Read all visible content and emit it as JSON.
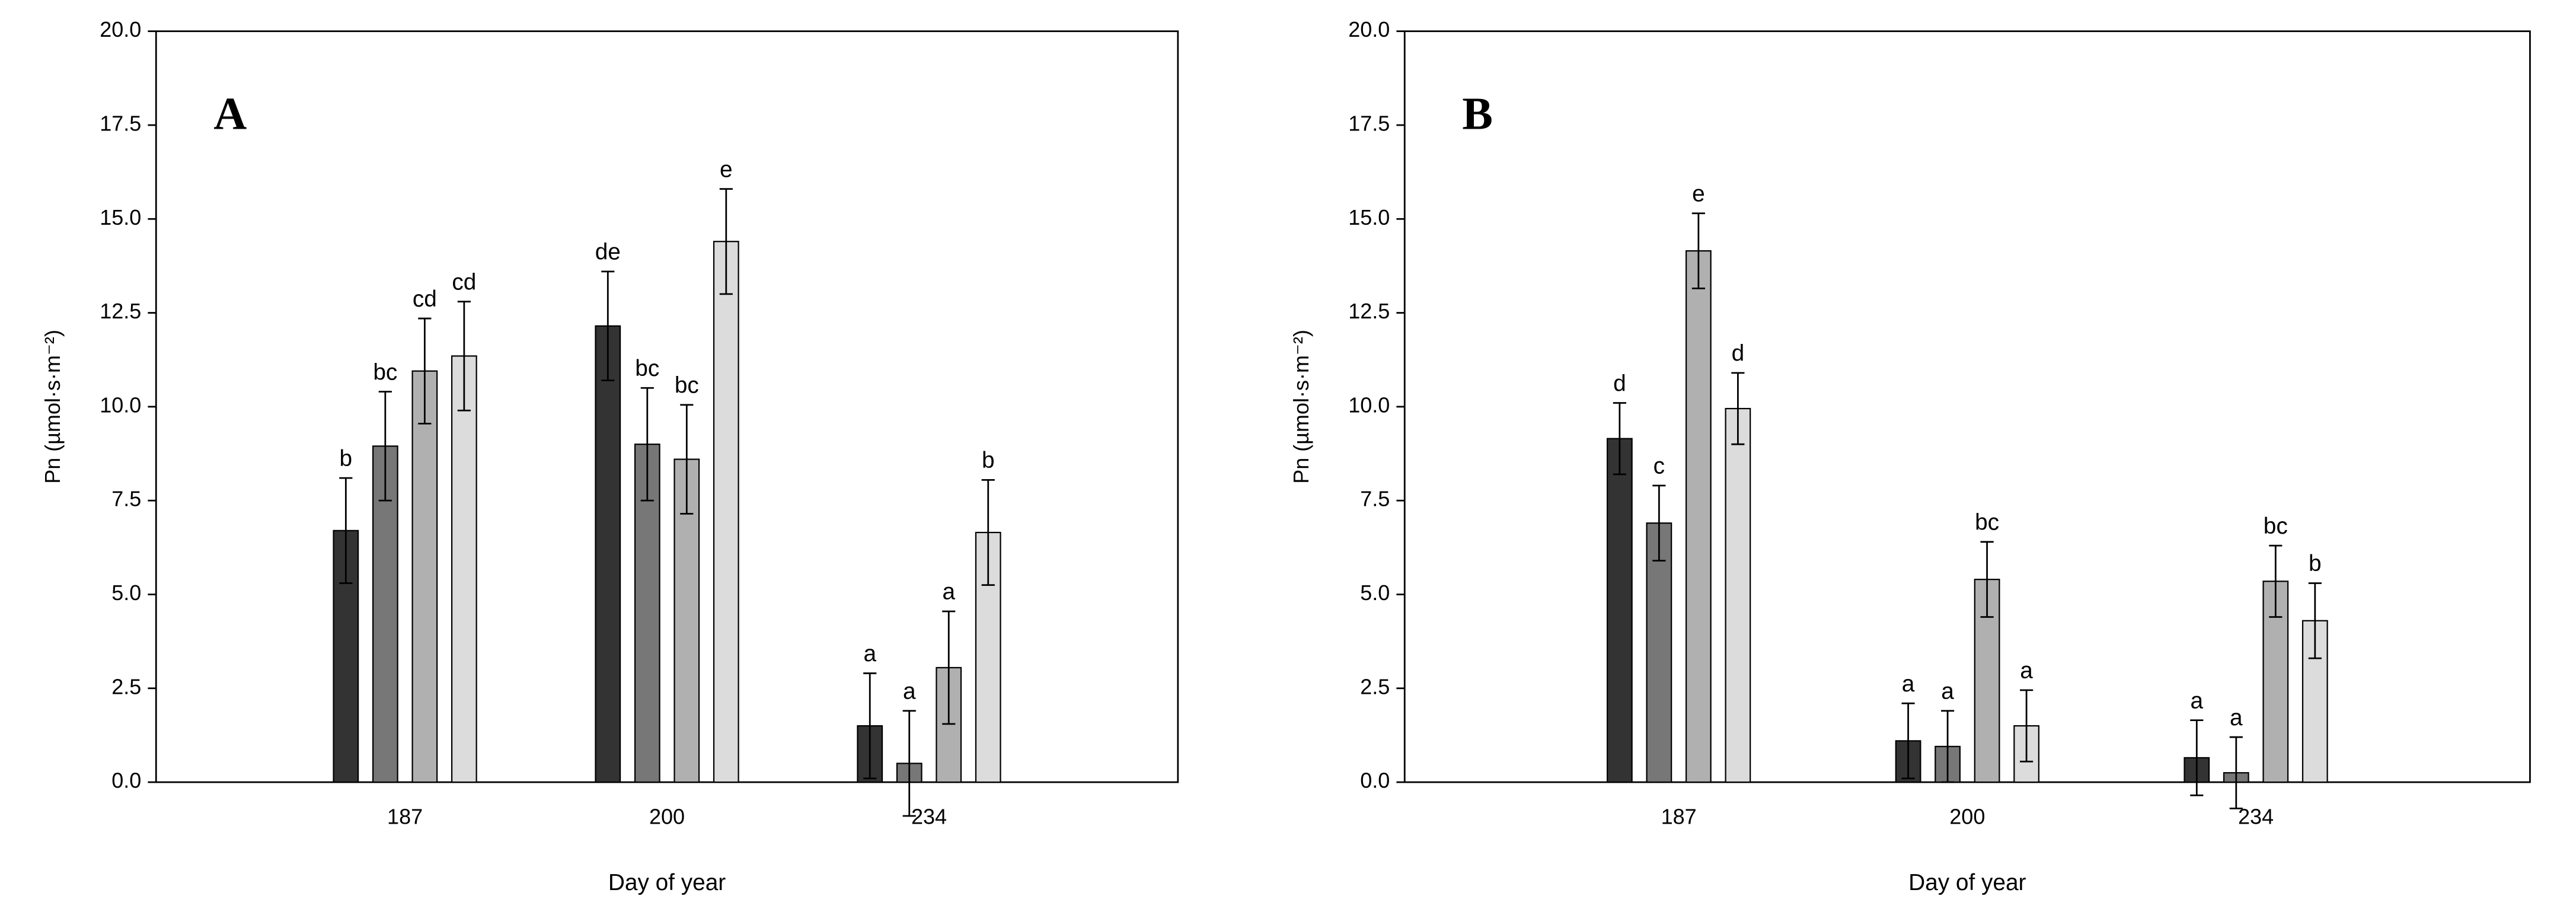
{
  "chart_data": [
    {
      "type": "bar",
      "panel_label": "A",
      "xlabel": "Day of year",
      "ylabel": "Pn (µmol·s·m⁻²)",
      "categories": [
        "187",
        "200",
        "234"
      ],
      "ylim": [
        0,
        20
      ],
      "yticks": [
        {
          "value": 0,
          "label": "0.0"
        },
        {
          "value": 2.5,
          "label": "2.5"
        },
        {
          "value": 5,
          "label": "5.0"
        },
        {
          "value": 7.5,
          "label": "7.5"
        },
        {
          "value": 10,
          "label": "10.0"
        },
        {
          "value": 12.5,
          "label": "12.5"
        },
        {
          "value": 15,
          "label": "15.0"
        },
        {
          "value": 17.5,
          "label": "17.5"
        },
        {
          "value": 20,
          "label": "20.0"
        }
      ],
      "grid": false,
      "series": [
        {
          "color": "#333333",
          "values": [
            6.7,
            12.15,
            1.5
          ],
          "errors": [
            1.4,
            1.45,
            1.4
          ],
          "letters": [
            "b",
            "de",
            "a"
          ]
        },
        {
          "color": "#777777",
          "values": [
            8.95,
            9.0,
            0.5
          ],
          "errors": [
            1.45,
            1.5,
            1.4
          ],
          "letters": [
            "bc",
            "bc",
            "a"
          ]
        },
        {
          "color": "#b0b0b0",
          "values": [
            10.95,
            8.6,
            3.05
          ],
          "errors": [
            1.4,
            1.45,
            1.5
          ],
          "letters": [
            "cd",
            "bc",
            "a"
          ]
        },
        {
          "color": "#dcdcdc",
          "values": [
            11.35,
            14.4,
            6.65
          ],
          "errors": [
            1.45,
            1.4,
            1.4
          ],
          "letters": [
            "cd",
            "e",
            "b"
          ]
        }
      ]
    },
    {
      "type": "bar",
      "panel_label": "B",
      "xlabel": "Day of year",
      "ylabel": "Pn (µmol·s·m⁻²)",
      "categories": [
        "187",
        "200",
        "234"
      ],
      "ylim": [
        0,
        20
      ],
      "yticks": [
        {
          "value": 0,
          "label": "0.0"
        },
        {
          "value": 2.5,
          "label": "2.5"
        },
        {
          "value": 5,
          "label": "5.0"
        },
        {
          "value": 7.5,
          "label": "7.5"
        },
        {
          "value": 10,
          "label": "10.0"
        },
        {
          "value": 12.5,
          "label": "12.5"
        },
        {
          "value": 15,
          "label": "15.0"
        },
        {
          "value": 17.5,
          "label": "17.5"
        },
        {
          "value": 20,
          "label": "20.0"
        }
      ],
      "grid": false,
      "series": [
        {
          "color": "#333333",
          "values": [
            9.15,
            1.1,
            0.65
          ],
          "errors": [
            0.95,
            1.0,
            1.0
          ],
          "letters": [
            "d",
            "a",
            "a"
          ]
        },
        {
          "color": "#777777",
          "values": [
            6.9,
            0.95,
            0.25
          ],
          "errors": [
            1.0,
            0.95,
            0.95
          ],
          "letters": [
            "c",
            "a",
            "a"
          ]
        },
        {
          "color": "#b0b0b0",
          "values": [
            14.15,
            5.4,
            5.35
          ],
          "errors": [
            1.0,
            1.0,
            0.95
          ],
          "letters": [
            "e",
            "bc",
            "bc"
          ]
        },
        {
          "color": "#dcdcdc",
          "values": [
            9.95,
            1.5,
            4.3
          ],
          "errors": [
            0.95,
            0.95,
            1.0
          ],
          "letters": [
            "d",
            "a",
            "b"
          ]
        }
      ]
    }
  ]
}
